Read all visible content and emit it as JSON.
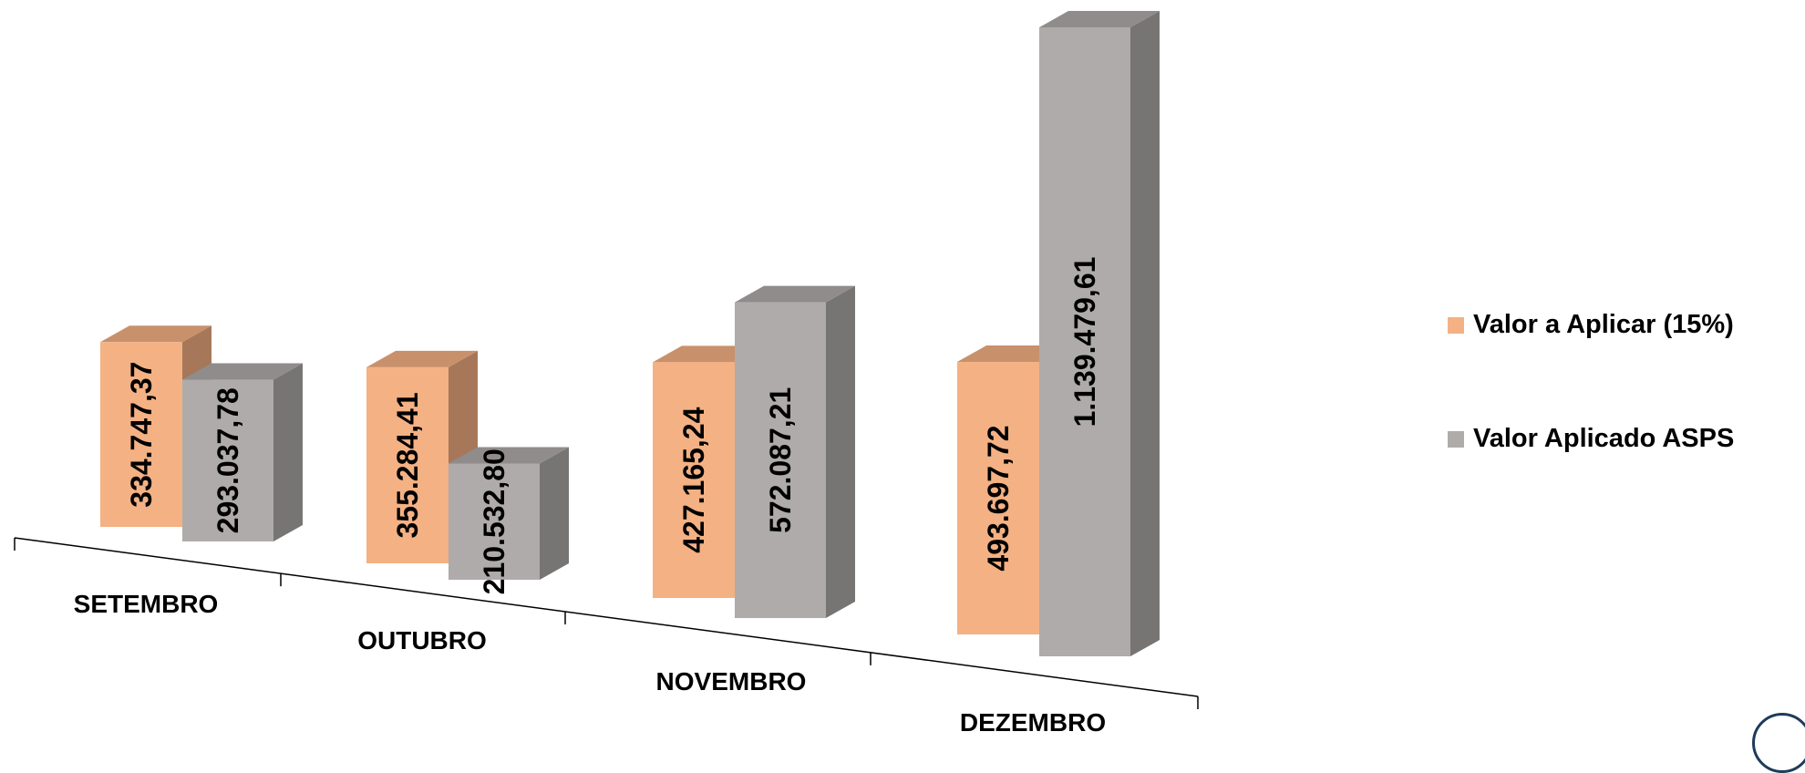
{
  "chart_data": {
    "type": "bar",
    "categories": [
      "SETEMBRO",
      "OUTUBRO",
      "NOVEMBRO",
      "DEZEMBRO"
    ],
    "series": [
      {
        "name": "Valor a Aplicar (15%)",
        "values": [
          334747.37,
          355284.41,
          427165.24,
          493697.72
        ],
        "labels": [
          "334.747,37",
          "355.284,41",
          "427.165,24",
          "493.697,72"
        ],
        "color": "#f4b183"
      },
      {
        "name": "Valor Aplicado ASPS",
        "values": [
          293037.78,
          210532.8,
          572087.21,
          1139479.61
        ],
        "labels": [
          "293.037,78",
          "210.532,80",
          "572.087,21",
          "1.139.479,61"
        ],
        "color": "#afabab"
      }
    ],
    "style": "3d-clustered-column",
    "legend_position": "right",
    "grid": false
  }
}
